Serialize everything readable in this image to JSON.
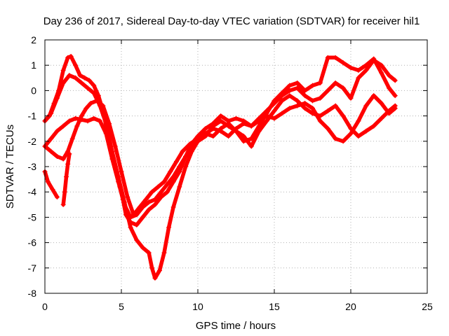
{
  "chart_data": {
    "type": "scatter",
    "title": "Day 236 of 2017, Sidereal Day-to-day VTEC variation (SDTVAR) for receiver hil1",
    "xlabel": "GPS time / hours",
    "ylabel": "SDTVAR / TECUs",
    "xlim": [
      0,
      25
    ],
    "ylim": [
      -8,
      2
    ],
    "xticks": [
      0,
      5,
      10,
      15,
      20,
      25
    ],
    "yticks": [
      -8,
      -7,
      -6,
      -5,
      -4,
      -3,
      -2,
      -1,
      0,
      1,
      2
    ],
    "grid": true,
    "marker": "+",
    "color": "#ff0000",
    "series": [
      {
        "points": [
          [
            0.0,
            -1.2
          ],
          [
            0.3,
            -1.0
          ],
          [
            0.6,
            -0.5
          ],
          [
            0.9,
            0.0
          ],
          [
            1.2,
            0.8
          ],
          [
            1.5,
            1.3
          ],
          [
            1.7,
            1.35
          ],
          [
            2.0,
            1.0
          ],
          [
            2.3,
            0.6
          ],
          [
            2.6,
            0.5
          ],
          [
            2.9,
            0.4
          ],
          [
            3.2,
            0.2
          ],
          [
            3.5,
            -0.2
          ],
          [
            3.8,
            -0.8
          ],
          [
            4.0,
            -1.4
          ],
          [
            4.3,
            -2.2
          ],
          [
            4.6,
            -3.0
          ],
          [
            4.9,
            -3.8
          ],
          [
            5.1,
            -4.3
          ],
          [
            5.3,
            -4.9
          ],
          [
            5.6,
            -5.2
          ],
          [
            6.0,
            -5.3
          ],
          [
            6.4,
            -5.0
          ],
          [
            6.8,
            -4.7
          ],
          [
            7.2,
            -4.5
          ],
          [
            7.6,
            -4.2
          ],
          [
            8.0,
            -4.0
          ],
          [
            8.4,
            -3.6
          ],
          [
            8.8,
            -3.2
          ],
          [
            9.2,
            -2.6
          ],
          [
            9.6,
            -2.2
          ],
          [
            10.0,
            -2.0
          ],
          [
            10.5,
            -1.8
          ],
          [
            11.0,
            -1.4
          ],
          [
            11.5,
            -1.2
          ],
          [
            12.0,
            -1.4
          ],
          [
            12.5,
            -1.6
          ],
          [
            13.0,
            -1.8
          ],
          [
            13.5,
            -2.2
          ],
          [
            14.0,
            -1.6
          ],
          [
            14.5,
            -1.2
          ],
          [
            15.0,
            -0.8
          ],
          [
            15.5,
            -0.4
          ],
          [
            16.0,
            -0.2
          ],
          [
            16.5,
            -0.4
          ],
          [
            17.0,
            -0.7
          ],
          [
            17.5,
            -0.9
          ],
          [
            18.0,
            -1.0
          ],
          [
            18.5,
            -0.8
          ],
          [
            19.0,
            -0.6
          ],
          [
            19.5,
            -1.0
          ],
          [
            20.0,
            -1.5
          ],
          [
            20.5,
            -1.8
          ],
          [
            21.0,
            -1.6
          ],
          [
            21.5,
            -1.4
          ],
          [
            22.0,
            -1.1
          ],
          [
            22.5,
            -0.8
          ],
          [
            22.9,
            -0.6
          ]
        ]
      },
      {
        "points": [
          [
            0.0,
            -1.2
          ],
          [
            0.4,
            -0.9
          ],
          [
            0.8,
            -0.3
          ],
          [
            1.2,
            0.3
          ],
          [
            1.6,
            0.6
          ],
          [
            2.0,
            0.5
          ],
          [
            2.4,
            0.3
          ],
          [
            2.8,
            0.1
          ],
          [
            3.2,
            -0.1
          ],
          [
            3.6,
            -0.6
          ],
          [
            4.0,
            -1.3
          ],
          [
            4.4,
            -2.4
          ],
          [
            4.8,
            -3.4
          ],
          [
            5.2,
            -4.4
          ],
          [
            5.6,
            -5.4
          ],
          [
            6.0,
            -5.9
          ],
          [
            6.4,
            -6.2
          ],
          [
            6.8,
            -6.4
          ],
          [
            7.0,
            -7.0
          ],
          [
            7.2,
            -7.4
          ],
          [
            7.5,
            -7.1
          ],
          [
            7.8,
            -6.4
          ],
          [
            8.1,
            -5.4
          ],
          [
            8.4,
            -4.6
          ],
          [
            8.8,
            -3.8
          ],
          [
            9.2,
            -3.0
          ],
          [
            9.6,
            -2.4
          ],
          [
            10.0,
            -2.0
          ],
          [
            10.5,
            -1.7
          ],
          [
            11.0,
            -1.5
          ],
          [
            11.5,
            -1.6
          ],
          [
            12.0,
            -1.8
          ],
          [
            12.5,
            -1.5
          ],
          [
            13.0,
            -1.3
          ],
          [
            13.5,
            -1.4
          ],
          [
            14.0,
            -1.2
          ],
          [
            14.5,
            -1.0
          ],
          [
            15.0,
            -1.1
          ],
          [
            15.5,
            -0.9
          ],
          [
            16.0,
            -0.7
          ],
          [
            16.5,
            -0.6
          ],
          [
            17.0,
            -0.5
          ],
          [
            17.5,
            -0.7
          ],
          [
            18.0,
            -1.2
          ],
          [
            18.5,
            -1.5
          ],
          [
            19.0,
            -1.9
          ],
          [
            19.5,
            -2.0
          ],
          [
            20.0,
            -1.7
          ],
          [
            20.5,
            -1.2
          ],
          [
            21.0,
            -0.6
          ],
          [
            21.5,
            -0.2
          ],
          [
            22.0,
            -0.5
          ],
          [
            22.5,
            -0.9
          ],
          [
            22.9,
            -0.7
          ]
        ]
      },
      {
        "points": [
          [
            0.0,
            -2.2
          ],
          [
            0.4,
            -1.9
          ],
          [
            0.8,
            -1.6
          ],
          [
            1.2,
            -1.4
          ],
          [
            1.6,
            -1.2
          ],
          [
            2.0,
            -1.1
          ],
          [
            2.4,
            -1.15
          ],
          [
            2.8,
            -1.2
          ],
          [
            3.2,
            -1.1
          ],
          [
            3.6,
            -1.2
          ],
          [
            4.0,
            -1.7
          ],
          [
            4.4,
            -2.7
          ],
          [
            4.8,
            -3.6
          ],
          [
            5.2,
            -4.5
          ],
          [
            5.6,
            -5.0
          ],
          [
            6.0,
            -4.9
          ],
          [
            6.4,
            -4.6
          ],
          [
            6.8,
            -4.4
          ],
          [
            7.2,
            -4.3
          ],
          [
            7.6,
            -4.0
          ],
          [
            8.0,
            -3.7
          ],
          [
            8.4,
            -3.4
          ],
          [
            8.8,
            -3.0
          ],
          [
            9.2,
            -2.6
          ],
          [
            9.6,
            -2.1
          ],
          [
            10.0,
            -1.8
          ],
          [
            10.5,
            -1.5
          ],
          [
            11.0,
            -1.3
          ],
          [
            11.5,
            -1.0
          ],
          [
            12.0,
            -1.2
          ],
          [
            12.5,
            -1.1
          ],
          [
            13.0,
            -1.2
          ],
          [
            13.5,
            -1.4
          ],
          [
            14.0,
            -1.1
          ],
          [
            14.5,
            -0.8
          ],
          [
            15.0,
            -0.5
          ],
          [
            15.5,
            -0.2
          ],
          [
            16.0,
            0.0
          ],
          [
            16.5,
            0.1
          ],
          [
            17.0,
            -0.2
          ],
          [
            17.5,
            -0.4
          ],
          [
            18.0,
            -0.3
          ],
          [
            18.5,
            0.0
          ],
          [
            19.0,
            0.3
          ],
          [
            19.5,
            0.1
          ],
          [
            20.0,
            -0.3
          ],
          [
            20.5,
            0.5
          ],
          [
            21.0,
            0.8
          ],
          [
            21.5,
            1.2
          ],
          [
            22.0,
            1.0
          ],
          [
            22.5,
            0.6
          ],
          [
            22.9,
            0.4
          ]
        ]
      },
      {
        "points": [
          [
            0.0,
            -2.2
          ],
          [
            0.4,
            -2.4
          ],
          [
            0.8,
            -2.6
          ],
          [
            1.2,
            -2.7
          ],
          [
            1.5,
            -2.4
          ],
          [
            1.8,
            -1.9
          ],
          [
            2.1,
            -1.4
          ],
          [
            2.4,
            -1.0
          ],
          [
            2.7,
            -0.7
          ],
          [
            3.0,
            -0.5
          ],
          [
            3.4,
            -0.4
          ],
          [
            3.8,
            -0.6
          ],
          [
            4.2,
            -1.3
          ],
          [
            4.6,
            -2.2
          ],
          [
            5.0,
            -3.2
          ],
          [
            5.4,
            -4.2
          ],
          [
            5.8,
            -4.9
          ],
          [
            6.2,
            -4.6
          ],
          [
            6.6,
            -4.3
          ],
          [
            7.0,
            -4.0
          ],
          [
            7.4,
            -3.8
          ],
          [
            7.8,
            -3.6
          ],
          [
            8.2,
            -3.2
          ],
          [
            8.6,
            -2.8
          ],
          [
            9.0,
            -2.4
          ],
          [
            9.5,
            -2.1
          ],
          [
            10.0,
            -1.9
          ],
          [
            10.5,
            -1.7
          ],
          [
            11.0,
            -1.8
          ],
          [
            11.5,
            -1.5
          ],
          [
            12.0,
            -1.3
          ],
          [
            12.5,
            -1.6
          ],
          [
            13.0,
            -2.0
          ],
          [
            13.5,
            -1.9
          ],
          [
            14.0,
            -1.4
          ],
          [
            14.5,
            -0.9
          ],
          [
            15.0,
            -0.4
          ],
          [
            15.5,
            -0.1
          ],
          [
            16.0,
            0.2
          ],
          [
            16.5,
            0.3
          ],
          [
            17.0,
            0.0
          ],
          [
            17.5,
            0.2
          ],
          [
            18.0,
            0.3
          ],
          [
            18.5,
            1.3
          ],
          [
            19.0,
            1.3
          ],
          [
            19.5,
            1.1
          ],
          [
            20.0,
            0.9
          ],
          [
            20.5,
            0.8
          ],
          [
            21.0,
            1.0
          ],
          [
            21.5,
            1.25
          ],
          [
            22.0,
            0.7
          ],
          [
            22.5,
            0.1
          ],
          [
            22.9,
            -0.2
          ]
        ]
      },
      {
        "points": [
          [
            0.0,
            -3.2
          ],
          [
            0.2,
            -3.6
          ],
          [
            0.5,
            -3.9
          ],
          [
            0.8,
            -4.2
          ]
        ]
      },
      {
        "points": [
          [
            1.2,
            -4.5
          ],
          [
            1.3,
            -4.0
          ],
          [
            1.4,
            -3.4
          ],
          [
            1.5,
            -2.9
          ],
          [
            1.6,
            -2.5
          ]
        ]
      }
    ]
  }
}
